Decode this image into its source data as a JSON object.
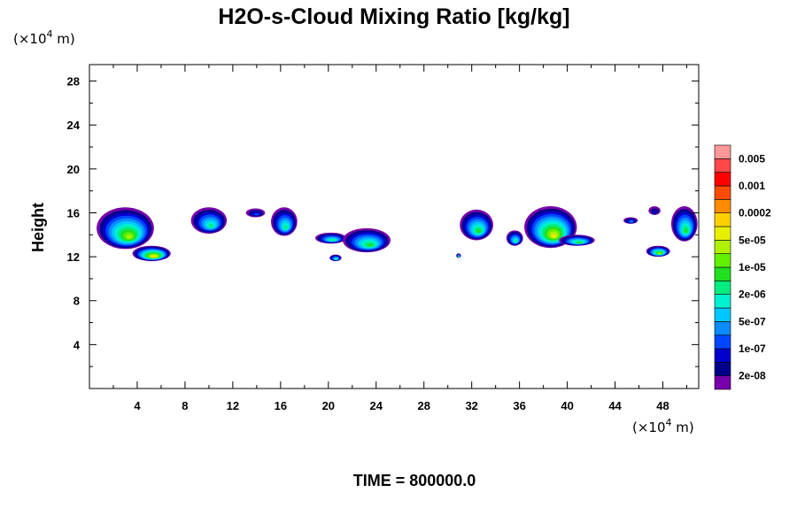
{
  "chart_data": {
    "type": "heatmap",
    "title": "H2O-s-Cloud Mixing Ratio [kg/kg]",
    "ylabel": "Height",
    "x_unit_prefix": "(×10",
    "x_unit_exp": "4",
    "x_unit_suffix": " m)",
    "y_unit_prefix": "(×10",
    "y_unit_exp": "4",
    "y_unit_suffix": " m)",
    "xlim": [
      0,
      51
    ],
    "ylim": [
      0,
      29.5
    ],
    "x_ticks": [
      4,
      8,
      12,
      16,
      20,
      24,
      28,
      32,
      36,
      40,
      44,
      48
    ],
    "y_ticks": [
      4,
      8,
      12,
      16,
      20,
      24,
      28
    ],
    "x_tick_labels": [
      "4",
      "8",
      "12",
      "16",
      "20",
      "24",
      "28",
      "32",
      "36",
      "40",
      "44",
      "48"
    ],
    "y_tick_labels": [
      "4",
      "8",
      "12",
      "16",
      "20",
      "24",
      "28"
    ],
    "time_label": "TIME = 800000.0",
    "colorbar": {
      "colors": [
        "#7700aa",
        "#00008a",
        "#0000cd",
        "#0046ff",
        "#0a8cff",
        "#00c8ff",
        "#00f0d0",
        "#00ee80",
        "#20e020",
        "#60f000",
        "#b0f000",
        "#e8f000",
        "#ffd000",
        "#ff8c00",
        "#ff4c00",
        "#ff0000",
        "#ff4848",
        "#ff9898"
      ],
      "labels": [
        "2e-08",
        "1e-07",
        "5e-07",
        "2e-06",
        "1e-05",
        "5e-05",
        "0.0002",
        "0.001",
        "0.005"
      ]
    },
    "clouds": [
      {
        "x": 3.0,
        "y": 14.6,
        "rx": 2.4,
        "ry": 1.9,
        "peak": 10
      },
      {
        "x": 5.2,
        "y": 12.3,
        "rx": 1.6,
        "ry": 0.7,
        "peak": 12
      },
      {
        "x": 10.0,
        "y": 15.3,
        "rx": 1.5,
        "ry": 1.2,
        "peak": 7
      },
      {
        "x": 13.9,
        "y": 16.0,
        "rx": 0.8,
        "ry": 0.4,
        "peak": 3
      },
      {
        "x": 16.3,
        "y": 15.2,
        "rx": 1.1,
        "ry": 1.3,
        "peak": 7
      },
      {
        "x": 20.2,
        "y": 13.7,
        "rx": 1.3,
        "ry": 0.5,
        "peak": 7
      },
      {
        "x": 20.6,
        "y": 11.9,
        "rx": 0.5,
        "ry": 0.3,
        "peak": 7
      },
      {
        "x": 23.2,
        "y": 13.5,
        "rx": 2.0,
        "ry": 1.1,
        "peak": 8
      },
      {
        "x": 32.4,
        "y": 14.9,
        "rx": 1.4,
        "ry": 1.4,
        "peak": 8
      },
      {
        "x": 35.6,
        "y": 13.7,
        "rx": 0.7,
        "ry": 0.7,
        "peak": 7
      },
      {
        "x": 38.6,
        "y": 14.7,
        "rx": 2.2,
        "ry": 1.9,
        "peak": 11
      },
      {
        "x": 40.8,
        "y": 13.5,
        "rx": 1.5,
        "ry": 0.5,
        "peak": 8
      },
      {
        "x": 45.3,
        "y": 15.3,
        "rx": 0.6,
        "ry": 0.3,
        "peak": 4
      },
      {
        "x": 47.3,
        "y": 16.2,
        "rx": 0.5,
        "ry": 0.4,
        "peak": 2
      },
      {
        "x": 47.6,
        "y": 12.5,
        "rx": 1.0,
        "ry": 0.5,
        "peak": 10
      },
      {
        "x": 49.8,
        "y": 15.0,
        "rx": 1.1,
        "ry": 1.6,
        "peak": 8
      },
      {
        "x": 30.9,
        "y": 12.1,
        "rx": 0.2,
        "ry": 0.2,
        "peak": 7
      }
    ]
  }
}
